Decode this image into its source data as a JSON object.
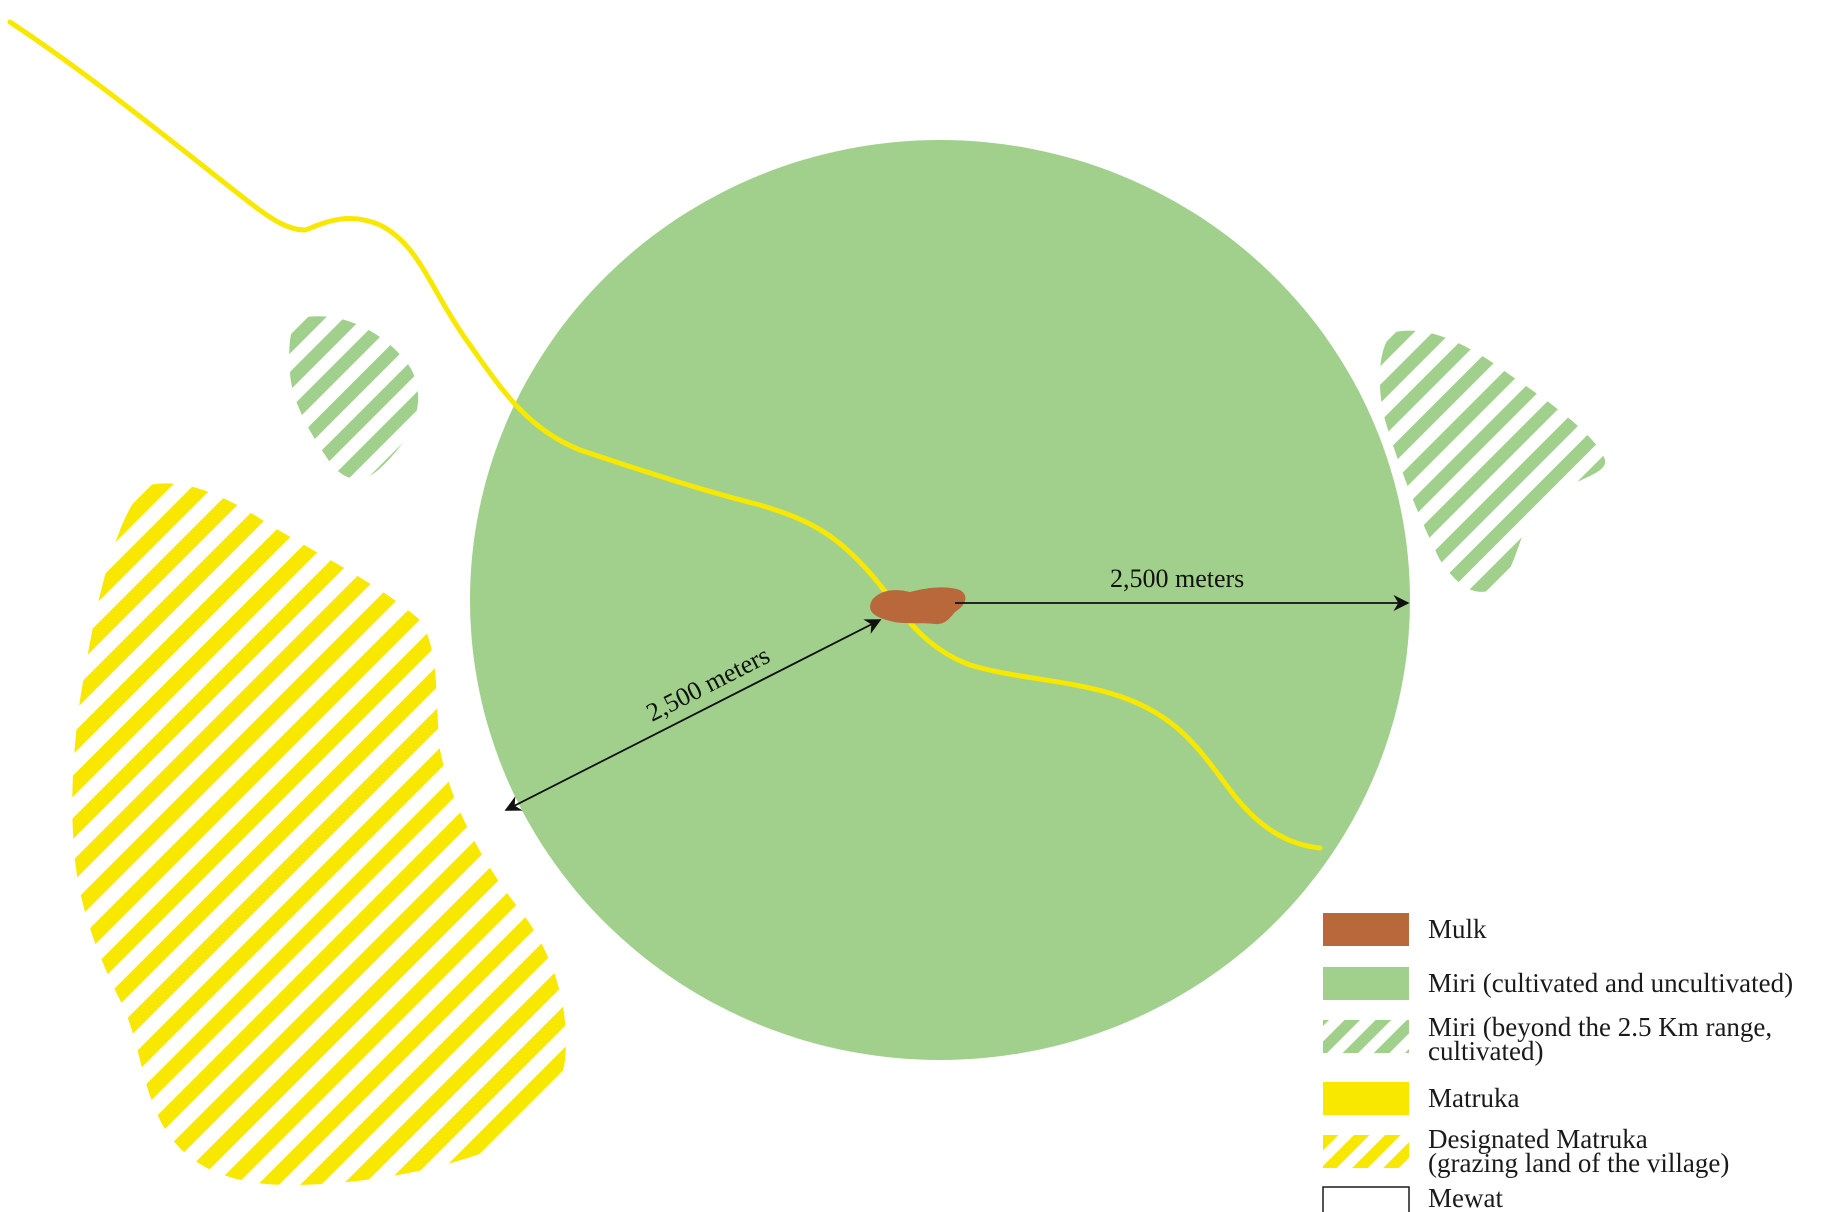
{
  "colors": {
    "mulk": "#b8683b",
    "miri": "#a0d08c",
    "matruka": "#f8e800",
    "mewat_border": "#1a1a1a",
    "road": "#f8e800",
    "arrow": "#111111",
    "background": "#ffffff"
  },
  "annotations": {
    "radius_right": "2,500 meters",
    "radius_lower_left": "2,500 meters"
  },
  "legend": {
    "mulk": {
      "label": "Mulk",
      "swatch": "solid",
      "color": "#b8683b"
    },
    "miri": {
      "label": "Miri (cultivated and uncultivated)",
      "swatch": "solid",
      "color": "#a0d08c"
    },
    "miri_beyond": {
      "line1": "Miri (beyond the 2.5 Km range,",
      "line2": "cultivated)",
      "swatch": "hatched",
      "color": "#a0d08c"
    },
    "matruka": {
      "label": "Matruka",
      "swatch": "solid",
      "color": "#f8e800"
    },
    "matruka_designated": {
      "line1": "Designated Matruka",
      "line2": "(grazing land of the village)",
      "swatch": "hatched",
      "color": "#f8e800"
    },
    "mewat": {
      "label": "Mewat",
      "swatch": "outline",
      "color": "#ffffff"
    }
  }
}
